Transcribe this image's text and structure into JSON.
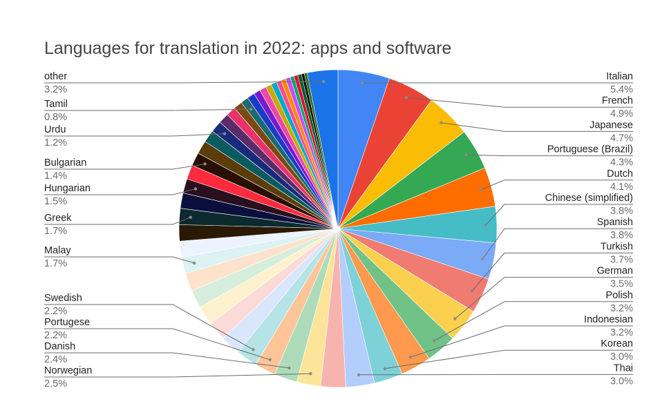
{
  "chart_data": {
    "type": "pie",
    "title": "Languages for translation in 2022: apps and software",
    "slices": [
      {
        "name": "Italian",
        "value": 5.4,
        "label": "5.4%",
        "color": "#4285f4"
      },
      {
        "name": "French",
        "value": 4.9,
        "label": "4.9%",
        "color": "#ea4335"
      },
      {
        "name": "Japanese",
        "value": 4.7,
        "label": "4.7%",
        "color": "#fbbc04"
      },
      {
        "name": "Portuguese (Brazil)",
        "value": 4.3,
        "label": "4.3%",
        "color": "#34a853"
      },
      {
        "name": "Dutch",
        "value": 4.1,
        "label": "4.1%",
        "color": "#ff6d01"
      },
      {
        "name": "Chinese (simplified)",
        "value": 3.8,
        "label": "3.8%",
        "color": "#46bdc6"
      },
      {
        "name": "Spanish",
        "value": 3.8,
        "label": "3.8%",
        "color": "#7baaf7"
      },
      {
        "name": "Turkish",
        "value": 3.7,
        "label": "3.7%",
        "color": "#f07b72"
      },
      {
        "name": "German",
        "value": 3.5,
        "label": "3.5%",
        "color": "#fcd04f"
      },
      {
        "name": "Polish",
        "value": 3.2,
        "label": "3.2%",
        "color": "#71c287"
      },
      {
        "name": "Indonesian",
        "value": 3.2,
        "label": "3.2%",
        "color": "#ff994d"
      },
      {
        "name": "Korean",
        "value": 3.0,
        "label": "3.0%",
        "color": "#7ed1d7"
      },
      {
        "name": "Thai",
        "value": 3.0,
        "label": "3.0%",
        "color": "#b3cefb"
      },
      {
        "name": "",
        "value": 2.6,
        "label": "",
        "color": "#f7b4ae"
      },
      {
        "name": "Norwegian",
        "value": 2.5,
        "label": "2.5%",
        "color": "#fde49b"
      },
      {
        "name": "Danish",
        "value": 2.4,
        "label": "2.4%",
        "color": "#aedcba"
      },
      {
        "name": "Portugese",
        "value": 2.2,
        "label": "2.2%",
        "color": "#ffc599"
      },
      {
        "name": "Swedish",
        "value": 2.2,
        "label": "2.2%",
        "color": "#b5e3e6"
      },
      {
        "name": "",
        "value": 2.1,
        "label": "",
        "color": "#d9e6fc"
      },
      {
        "name": "",
        "value": 2.0,
        "label": "",
        "color": "#fbdad7"
      },
      {
        "name": "",
        "value": 2.0,
        "label": "",
        "color": "#fef1cd"
      },
      {
        "name": "",
        "value": 1.9,
        "label": "",
        "color": "#d6eedc"
      },
      {
        "name": "",
        "value": 1.9,
        "label": "",
        "color": "#ffe2cc"
      },
      {
        "name": "Malay",
        "value": 1.7,
        "label": "1.7%",
        "color": "#dcf2f3"
      },
      {
        "name": "",
        "value": 1.7,
        "label": "",
        "color": "#ecf3fe"
      },
      {
        "name": "",
        "value": 1.7,
        "label": "",
        "color": "#2a1a05"
      },
      {
        "name": "Greek",
        "value": 1.7,
        "label": "1.7%",
        "color": "#0b2a2e"
      },
      {
        "name": "",
        "value": 1.6,
        "label": "",
        "color": "#0a0f3e"
      },
      {
        "name": "Hungarian",
        "value": 1.5,
        "label": "1.5%",
        "color": "#2a0f1e"
      },
      {
        "name": "",
        "value": 1.5,
        "label": "",
        "color": "#ff2b3c"
      },
      {
        "name": "Bulgarian",
        "value": 1.4,
        "label": "1.4%",
        "color": "#2a0f05"
      },
      {
        "name": "",
        "value": 1.4,
        "label": "",
        "color": "#5a3d0a"
      },
      {
        "name": "",
        "value": 1.3,
        "label": "",
        "color": "#0b5a60"
      },
      {
        "name": "Urdu",
        "value": 1.2,
        "label": "1.2%",
        "color": "#1a2a7a"
      },
      {
        "name": "",
        "value": 1.1,
        "label": "",
        "color": "#5a2d6a"
      },
      {
        "name": "",
        "value": 1.0,
        "label": "",
        "color": "#e8336a"
      },
      {
        "name": "",
        "value": 0.9,
        "label": "",
        "color": "#7a4a12"
      },
      {
        "name": "Tamil",
        "value": 0.8,
        "label": "0.8%",
        "color": "#1a6a6e"
      },
      {
        "name": "",
        "value": 0.8,
        "label": "",
        "color": "#1a3ac8"
      },
      {
        "name": "",
        "value": 0.7,
        "label": "",
        "color": "#7a1ac8"
      },
      {
        "name": "",
        "value": 0.7,
        "label": "",
        "color": "#e84aa8"
      },
      {
        "name": "",
        "value": 0.6,
        "label": "",
        "color": "#c8a800"
      },
      {
        "name": "",
        "value": 0.6,
        "label": "",
        "color": "#0aa8c8"
      },
      {
        "name": "",
        "value": 0.5,
        "label": "",
        "color": "#ff4a8a"
      },
      {
        "name": "",
        "value": 0.5,
        "label": "",
        "color": "#ff8a00"
      },
      {
        "name": "",
        "value": 0.5,
        "label": "",
        "color": "#c84aff"
      },
      {
        "name": "",
        "value": 0.4,
        "label": "",
        "color": "#00a86a"
      },
      {
        "name": "",
        "value": 0.4,
        "label": "",
        "color": "#e8002a"
      },
      {
        "name": "",
        "value": 0.4,
        "label": "",
        "color": "#0a5a2a"
      },
      {
        "name": "",
        "value": 0.3,
        "label": "",
        "color": "#000000"
      },
      {
        "name": "",
        "value": 0.3,
        "label": "",
        "color": "#2a6a0a"
      },
      {
        "name": "other",
        "value": 3.2,
        "label": "3.2%",
        "color": "#1a73e8"
      }
    ]
  }
}
